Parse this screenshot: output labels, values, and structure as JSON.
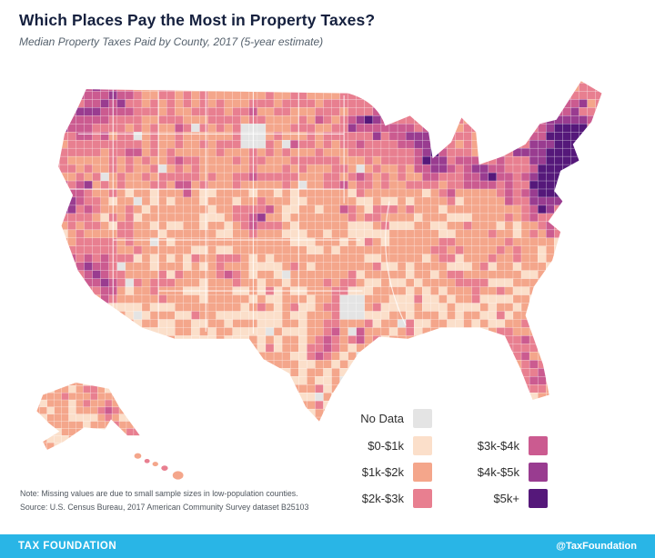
{
  "header": {
    "title": "Which Places Pay the Most in Property Taxes?",
    "subtitle": "Median Property Taxes Paid by County, 2017 (5-year estimate)"
  },
  "legend": {
    "no_data": {
      "label": "No Data",
      "color": "#e4e4e4"
    },
    "items": [
      {
        "label": "$0-$1k",
        "color": "#fbdfca"
      },
      {
        "label": "$1k-$2k",
        "color": "#f4a68b"
      },
      {
        "label": "$2k-$3k",
        "color": "#e87f90"
      },
      {
        "label": "$3k-$4k",
        "color": "#cb5b90"
      },
      {
        "label": "$4k-$5k",
        "color": "#993c90"
      },
      {
        "label": "$5k+",
        "color": "#55187a"
      }
    ]
  },
  "map": {
    "description": "United States county-level choropleth of median property taxes paid",
    "no_data_color": "#e4e4e4",
    "bucket_colors": [
      "#fbdfca",
      "#f4a68b",
      "#e87f90",
      "#cb5b90",
      "#993c90",
      "#55187a"
    ]
  },
  "notes": {
    "note": "Note: Missing values are due to small sample sizes in low-population counties.",
    "source": "Source: U.S. Census Bureau, 2017 American Community Survey dataset B25103"
  },
  "footer": {
    "brand": "TAX FOUNDATION",
    "handle": "@TaxFoundation",
    "color": "#29b5e6"
  }
}
